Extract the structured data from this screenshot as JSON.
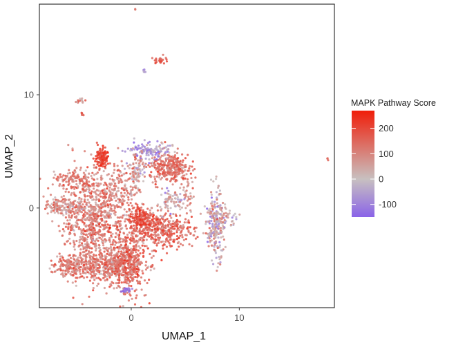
{
  "chart_data": {
    "type": "scatter",
    "title": "",
    "xlabel": "UMAP_1",
    "ylabel": "UMAP_2",
    "xlim": [
      -8.5,
      18.8
    ],
    "ylim": [
      -8.8,
      18.0
    ],
    "x_ticks": [
      {
        "value": 0,
        "label": "0"
      },
      {
        "value": 10,
        "label": "10"
      }
    ],
    "y_ticks": [
      {
        "value": 0,
        "label": "0"
      },
      {
        "value": 10,
        "label": "10"
      }
    ],
    "grid": false,
    "legend": {
      "title": "MAPK Pathway Score",
      "placement": "right",
      "type": "colorbar",
      "range": [
        -150,
        270
      ],
      "ticks": [
        {
          "value": 200,
          "label": "200"
        },
        {
          "value": 100,
          "label": "100"
        },
        {
          "value": 0,
          "label": "0"
        },
        {
          "value": -100,
          "label": "-100"
        }
      ],
      "colors": {
        "low": "#8a63e8",
        "mid": "#c8c0c0",
        "high": "#f01e0a"
      }
    },
    "clusters": [
      {
        "cx": -3.6,
        "cy": -1.0,
        "sx": 1.5,
        "sy": 2.3,
        "n": 900,
        "score": 110,
        "spread": 55
      },
      {
        "cx": -2.0,
        "cy": -5.0,
        "sx": 1.6,
        "sy": 0.6,
        "n": 380,
        "score": 120,
        "spread": 50
      },
      {
        "cx": -0.4,
        "cy": -4.8,
        "sx": 0.9,
        "sy": 1.6,
        "n": 420,
        "score": 145,
        "spread": 50
      },
      {
        "cx": -5.5,
        "cy": -5.2,
        "sx": 0.9,
        "sy": 0.4,
        "n": 160,
        "score": 120,
        "spread": 45
      },
      {
        "cx": -6.2,
        "cy": 0.1,
        "sx": 1.0,
        "sy": 0.35,
        "n": 130,
        "score": 90,
        "spread": 55
      },
      {
        "cx": -5.5,
        "cy": 2.5,
        "sx": 1.0,
        "sy": 0.45,
        "n": 90,
        "score": 130,
        "spread": 45
      },
      {
        "cx": -2.8,
        "cy": 4.4,
        "sx": 0.3,
        "sy": 0.45,
        "n": 110,
        "score": 215,
        "spread": 30
      },
      {
        "cx": -1.1,
        "cy": 1.6,
        "sx": 0.5,
        "sy": 1.2,
        "n": 90,
        "score": 105,
        "spread": 50
      },
      {
        "cx": 2.7,
        "cy": -1.9,
        "sx": 1.5,
        "sy": 0.8,
        "n": 420,
        "score": 150,
        "spread": 50
      },
      {
        "cx": 0.8,
        "cy": -0.8,
        "sx": 0.5,
        "sy": 0.5,
        "n": 140,
        "score": 195,
        "spread": 35
      },
      {
        "cx": 3.5,
        "cy": 3.5,
        "sx": 0.9,
        "sy": 0.7,
        "n": 300,
        "score": 140,
        "spread": 45
      },
      {
        "cx": 1.7,
        "cy": 5.1,
        "sx": 0.9,
        "sy": 0.35,
        "n": 120,
        "score": -55,
        "spread": 60
      },
      {
        "cx": 0.6,
        "cy": 3.3,
        "sx": 0.5,
        "sy": 0.8,
        "n": 70,
        "score": 30,
        "spread": 70
      },
      {
        "cx": 3.8,
        "cy": 0.6,
        "sx": 0.7,
        "sy": 0.5,
        "n": 70,
        "score": 20,
        "spread": 60
      },
      {
        "cx": 7.8,
        "cy": -1.6,
        "sx": 0.4,
        "sy": 1.6,
        "n": 200,
        "score": 20,
        "spread": 80
      },
      {
        "cx": 8.6,
        "cy": -0.8,
        "sx": 0.6,
        "sy": 0.6,
        "n": 60,
        "score": 20,
        "spread": 60
      },
      {
        "cx": -0.4,
        "cy": -7.3,
        "sx": 0.2,
        "sy": 0.12,
        "n": 25,
        "score": -120,
        "spread": 25
      },
      {
        "cx": 2.7,
        "cy": 13.1,
        "sx": 0.3,
        "sy": 0.2,
        "n": 28,
        "score": 175,
        "spread": 30
      },
      {
        "cx": 1.3,
        "cy": 12.0,
        "sx": 0.12,
        "sy": 0.1,
        "n": 6,
        "score": -80,
        "spread": 30
      },
      {
        "cx": -4.6,
        "cy": 9.5,
        "sx": 0.3,
        "sy": 0.12,
        "n": 14,
        "score": 60,
        "spread": 60
      },
      {
        "cx": -4.6,
        "cy": 8.3,
        "sx": 0.1,
        "sy": 0.08,
        "n": 7,
        "score": 170,
        "spread": 30
      },
      {
        "cx": 0.4,
        "cy": 17.6,
        "sx": 0.05,
        "sy": 0.05,
        "n": 2,
        "score": 120,
        "spread": 20
      },
      {
        "cx": 18.2,
        "cy": 4.4,
        "sx": 0.1,
        "sy": 0.06,
        "n": 3,
        "score": 150,
        "spread": 20
      },
      {
        "cx": 5.2,
        "cy": 1.2,
        "sx": 0.3,
        "sy": 0.7,
        "n": 30,
        "score": 100,
        "spread": 50
      },
      {
        "cx": 0.3,
        "cy": 1.5,
        "sx": 0.4,
        "sy": 1.0,
        "n": 40,
        "score": 90,
        "spread": 60
      }
    ]
  }
}
